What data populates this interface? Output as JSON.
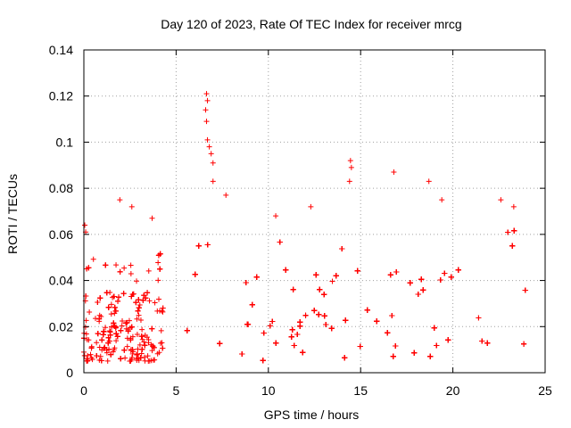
{
  "chart_data": {
    "type": "scatter",
    "title": "Day 120 of 2023, Rate Of TEC Index for receiver mrcg",
    "xlabel": "GPS time / hours",
    "ylabel": "ROTI / TECUs",
    "xlim": [
      0,
      25
    ],
    "ylim": [
      0,
      0.14
    ],
    "x_ticks": [
      0,
      5,
      10,
      15,
      20,
      25
    ],
    "x_tick_labels": [
      "0",
      "5",
      "10",
      "15",
      "20",
      "25"
    ],
    "y_ticks": [
      0,
      0.02,
      0.04,
      0.06,
      0.08,
      0.1,
      0.12,
      0.14
    ],
    "y_tick_labels": [
      "0",
      "0.02",
      "0.04",
      "0.06",
      "0.08",
      "0.1",
      "0.12",
      "0.14"
    ],
    "grid": true,
    "marker": "+",
    "series": [
      {
        "name": "ROTI",
        "color": "#ff0000",
        "data_segments": [
          {
            "x_start": 0.0,
            "x_end": 4.3,
            "typical_range": [
              0.005,
              0.035
            ]
          },
          {
            "x_start": 5.6,
            "x_end": 24.0,
            "typical_range": [
              0.005,
              0.045
            ]
          }
        ],
        "notable_points": [
          {
            "x": 0.05,
            "y": 0.064
          },
          {
            "x": 0.1,
            "y": 0.061
          },
          {
            "x": 1.95,
            "y": 0.075
          },
          {
            "x": 2.6,
            "y": 0.072
          },
          {
            "x": 3.7,
            "y": 0.067
          },
          {
            "x": 6.65,
            "y": 0.121
          },
          {
            "x": 6.7,
            "y": 0.118
          },
          {
            "x": 6.6,
            "y": 0.114
          },
          {
            "x": 6.65,
            "y": 0.109
          },
          {
            "x": 6.7,
            "y": 0.101
          },
          {
            "x": 6.8,
            "y": 0.098
          },
          {
            "x": 6.9,
            "y": 0.095
          },
          {
            "x": 7.0,
            "y": 0.091
          },
          {
            "x": 7.0,
            "y": 0.083
          },
          {
            "x": 7.7,
            "y": 0.077
          },
          {
            "x": 10.4,
            "y": 0.068
          },
          {
            "x": 12.3,
            "y": 0.072
          },
          {
            "x": 14.45,
            "y": 0.092
          },
          {
            "x": 14.5,
            "y": 0.089
          },
          {
            "x": 14.4,
            "y": 0.083
          },
          {
            "x": 16.8,
            "y": 0.087
          },
          {
            "x": 18.7,
            "y": 0.083
          },
          {
            "x": 19.4,
            "y": 0.075
          },
          {
            "x": 22.6,
            "y": 0.075
          },
          {
            "x": 23.3,
            "y": 0.072
          }
        ]
      }
    ]
  }
}
